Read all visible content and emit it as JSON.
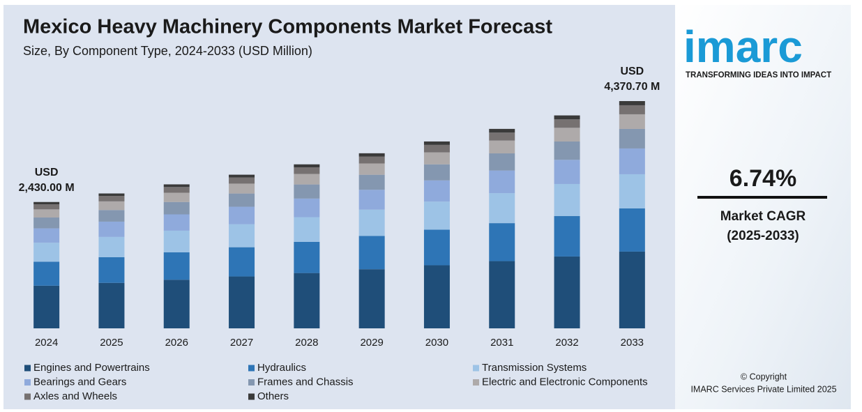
{
  "chart_data": {
    "type": "stacked-bar",
    "title": "Mexico Heavy Machinery Components Market Forecast",
    "subtitle": "Size, By Component Type, 2024-2033 (USD Million)",
    "categories": [
      "2024",
      "2025",
      "2026",
      "2027",
      "2028",
      "2029",
      "2030",
      "2031",
      "2032",
      "2033"
    ],
    "series": [
      {
        "name": "Engines and Powertrains",
        "color": "#1f4e79",
        "values": [
          820,
          875,
          935,
          998,
          1064,
          1137,
          1213,
          1293,
          1382,
          1475.7
        ]
      },
      {
        "name": "Hydraulics",
        "color": "#2e75b6",
        "values": [
          462,
          493,
          527,
          562,
          600,
          640,
          684,
          730,
          779,
          831
        ]
      },
      {
        "name": "Transmission Systems",
        "color": "#9dc3e6",
        "values": [
          365,
          390,
          416,
          444,
          474,
          506,
          540,
          577,
          615,
          657
        ]
      },
      {
        "name": "Bearings and Gears",
        "color": "#8faadc",
        "values": [
          276,
          294,
          314,
          335,
          358,
          382,
          408,
          435,
          465,
          496
        ]
      },
      {
        "name": "Frames and Chassis",
        "color": "#8497b0",
        "values": [
          209,
          223,
          238,
          254,
          271,
          289,
          309,
          330,
          352,
          375
        ]
      },
      {
        "name": "Electric and Electronic Components",
        "color": "#aeaaaa",
        "values": [
          156,
          167,
          178,
          190,
          203,
          217,
          231,
          247,
          264,
          282
        ]
      },
      {
        "name": "Axles and Wheels",
        "color": "#767171",
        "values": [
          97,
          104,
          110,
          118,
          126,
          134,
          143,
          153,
          163,
          174
        ]
      },
      {
        "name": "Others",
        "color": "#3a3a3a",
        "values": [
          45,
          48,
          51,
          54,
          58,
          62,
          66,
          71,
          75,
          80
        ]
      }
    ],
    "annotations": [
      {
        "x": "2024",
        "lines": [
          "USD",
          "2,430.00 M"
        ]
      },
      {
        "x": "2033",
        "lines": [
          "USD",
          "4,370.70 M"
        ]
      }
    ]
  },
  "side_panel": {
    "logo": "imarc",
    "tagline": "TRANSFORMING IDEAS INTO IMPACT",
    "cagr": "6.74%",
    "cagr_label": "Market CAGR",
    "cagr_period": "(2025-2033)",
    "copyright": [
      "© Copyright",
      "IMARC Services Private Limited 2025"
    ]
  }
}
